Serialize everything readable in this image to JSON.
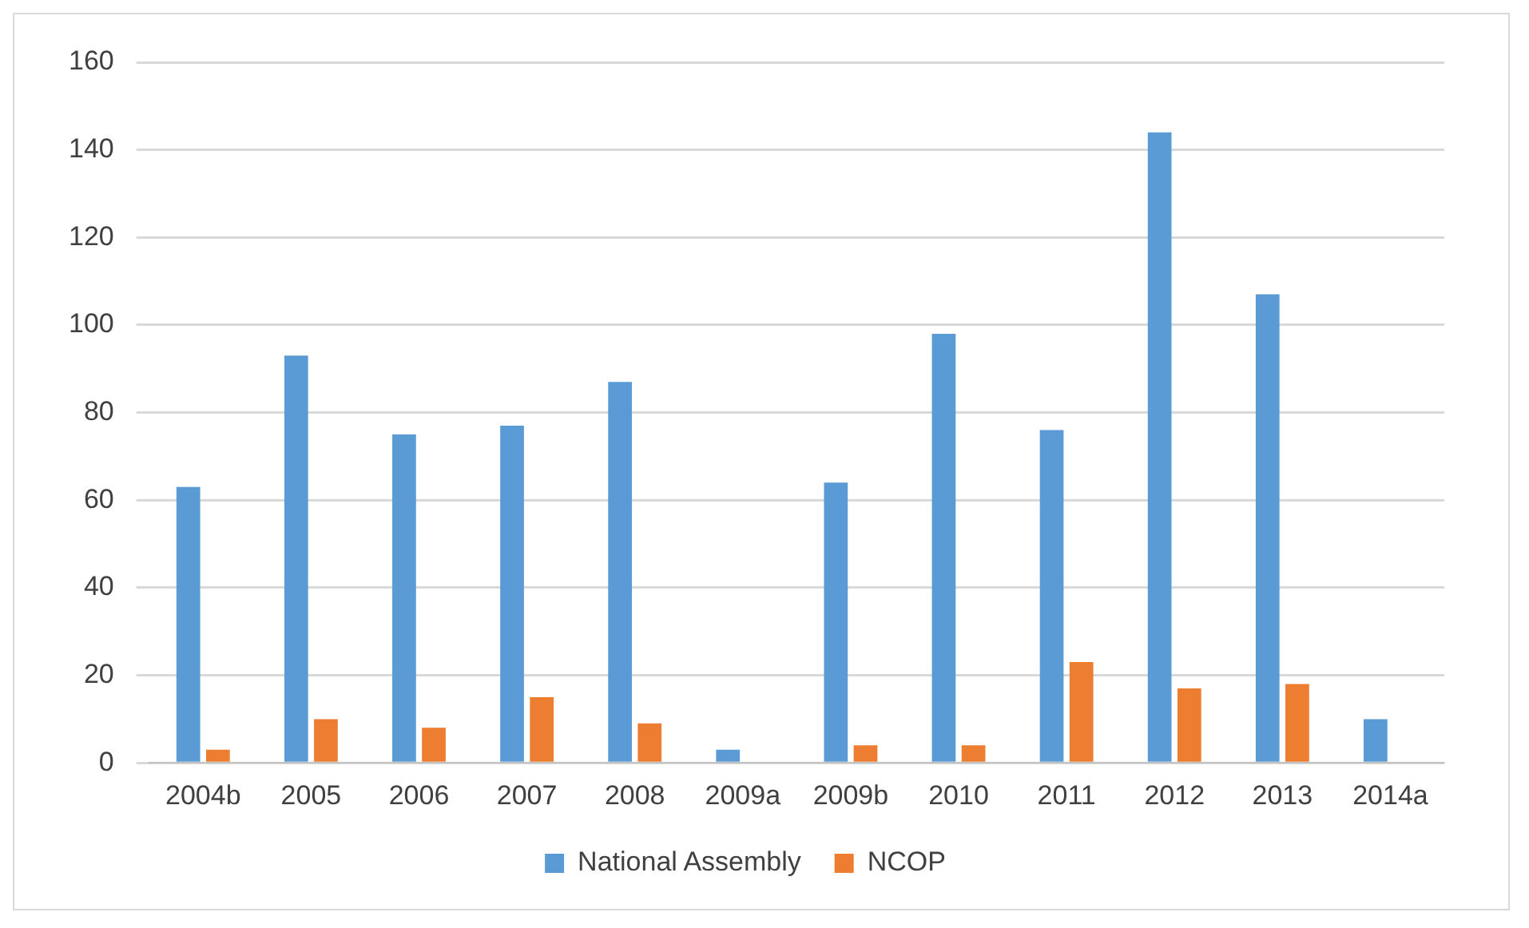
{
  "chart_data": {
    "type": "bar",
    "categories": [
      "2004b",
      "2005",
      "2006",
      "2007",
      "2008",
      "2009a",
      "2009b",
      "2010",
      "2011",
      "2012",
      "2013",
      "2014a"
    ],
    "series": [
      {
        "name": "National Assembly",
        "color": "#5b9bd5",
        "values": [
          63,
          93,
          75,
          77,
          87,
          3,
          64,
          98,
          76,
          144,
          107,
          10
        ]
      },
      {
        "name": "NCOP",
        "color": "#ed7d31",
        "values": [
          3,
          10,
          8,
          15,
          9,
          0,
          4,
          4,
          23,
          17,
          18,
          0
        ]
      }
    ],
    "ylim": [
      0,
      160
    ],
    "yticks": [
      0,
      20,
      40,
      60,
      80,
      100,
      120,
      140,
      160
    ],
    "grid": "y",
    "legend": "bottom"
  }
}
